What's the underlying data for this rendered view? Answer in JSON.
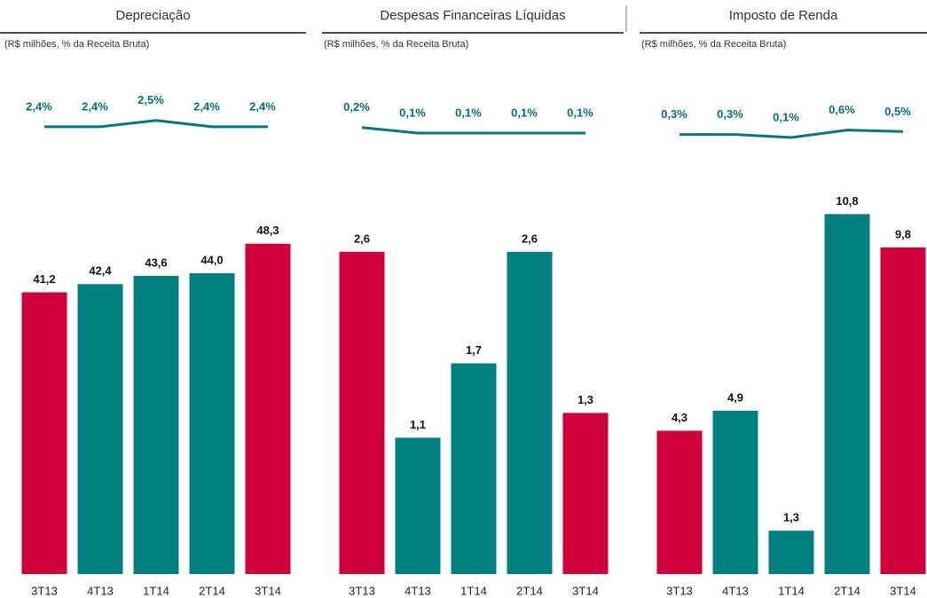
{
  "chart_data": [
    {
      "type": "bar",
      "title": "Depreciação",
      "subtitle": "(R$ milhões, % da Receita Bruta)",
      "categories": [
        "3T13",
        "4T13",
        "1T14",
        "2T14",
        "3T14"
      ],
      "series": [
        {
          "type": "bar",
          "values": [
            41.2,
            42.4,
            43.6,
            44.0,
            48.3
          ],
          "value_labels": [
            "41,2",
            "42,4",
            "43,6",
            "44,0",
            "48,3"
          ],
          "colors": [
            "#d0003a",
            "#008080",
            "#008080",
            "#008080",
            "#d0003a"
          ]
        },
        {
          "type": "line",
          "axis": "y2",
          "values": [
            2.4,
            2.4,
            2.5,
            2.4,
            2.4
          ],
          "value_labels": [
            "2,4%",
            "2,4%",
            "2,5%",
            "2,4%",
            "2,4%"
          ],
          "color": "#007a80"
        }
      ],
      "ylim": [
        0,
        58
      ],
      "y2lim": [
        1.6,
        3.0
      ]
    },
    {
      "type": "bar",
      "title": "Despesas Financeiras Líquidas",
      "subtitle": "(R$ milhões, % da Receita Bruta)",
      "categories": [
        "3T13",
        "4T13",
        "1T14",
        "2T14",
        "3T14"
      ],
      "series": [
        {
          "type": "bar",
          "values": [
            2.6,
            1.1,
            1.7,
            2.6,
            1.3
          ],
          "value_labels": [
            "2,6",
            "1,1",
            "1,7",
            "2,6",
            "1,3"
          ],
          "colors": [
            "#d0003a",
            "#008080",
            "#008080",
            "#008080",
            "#d0003a"
          ]
        },
        {
          "type": "line",
          "axis": "y2",
          "values": [
            0.2,
            0.1,
            0.1,
            0.1,
            0.1
          ],
          "value_labels": [
            "0,2%",
            "0,1%",
            "0,1%",
            "0,1%",
            "0,1%"
          ],
          "color": "#007a80"
        }
      ],
      "ylim": [
        0,
        3.2
      ],
      "y2lim": [
        -0.7,
        0.9
      ]
    },
    {
      "type": "bar",
      "title": "Imposto de Renda",
      "subtitle": "(R$ milhões, % da Receita Bruta)",
      "categories": [
        "3T13",
        "4T13",
        "1T14",
        "2T14",
        "3T14"
      ],
      "series": [
        {
          "type": "bar",
          "values": [
            4.3,
            4.9,
            1.3,
            10.8,
            9.8
          ],
          "value_labels": [
            "4,3",
            "4,9",
            "1,3",
            "10,8",
            "9,8"
          ],
          "colors": [
            "#d0003a",
            "#008080",
            "#008080",
            "#008080",
            "#d0003a"
          ]
        },
        {
          "type": "line",
          "axis": "y2",
          "values": [
            0.3,
            0.3,
            0.1,
            0.6,
            0.5
          ],
          "value_labels": [
            "0,3%",
            "0,3%",
            "0,1%",
            "0,6%",
            "0,5%"
          ],
          "color": "#007a80"
        }
      ],
      "ylim": [
        0,
        11.9
      ],
      "y2lim": [
        -2.6,
        3.4
      ]
    }
  ]
}
